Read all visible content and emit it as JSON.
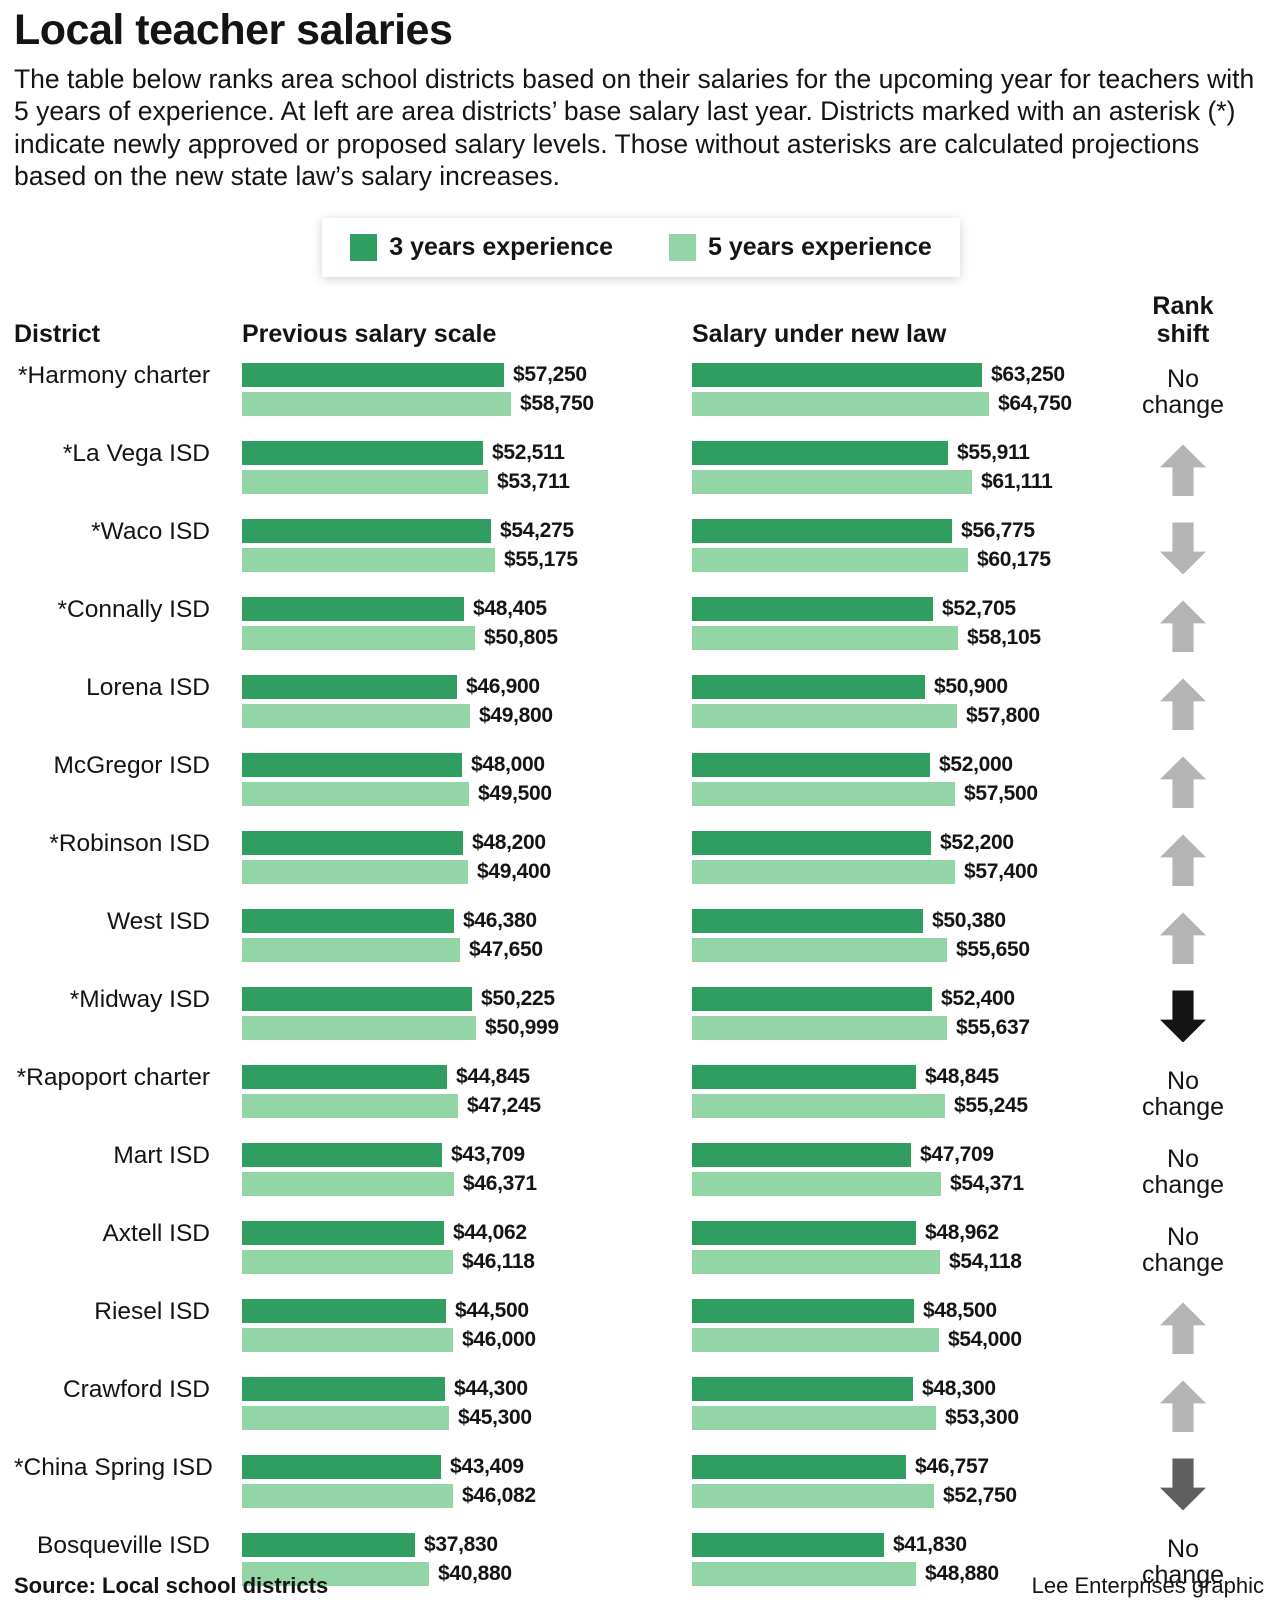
{
  "header": {
    "title": "Local teacher salaries",
    "description": "The table below ranks area school districts based on their salaries for the upcoming year for teachers with 5 years of experience. At left are area districts’ base salary last year. Districts marked with an asterisk (*) indicate newly approved or proposed salary levels. Those without asterisks are calculated projections based on the new state law’s salary increases."
  },
  "legend": [
    {
      "label": "3 years experience",
      "color": "#2f9e60"
    },
    {
      "label": "5 years experience",
      "color": "#94d5a7"
    }
  ],
  "columns": {
    "district": "District",
    "previous": "Previous salary scale",
    "new_law": "Salary under new law",
    "rank_shift": "Rank shift"
  },
  "chart_data": {
    "type": "bar",
    "title": "Local teacher salaries",
    "series_names": [
      "3 years experience",
      "5 years experience"
    ],
    "colors": {
      "three_year": "#2f9e60",
      "five_year": "#94d5a7"
    },
    "value_axis": {
      "min": 0,
      "max": 64750
    },
    "groups": [
      "Previous salary scale",
      "Salary under new law"
    ],
    "rows": [
      {
        "district": "*Harmony charter",
        "prev_3yr": 57250,
        "prev_3yr_label": "$57,250",
        "prev_5yr": 58750,
        "prev_5yr_label": "$58,750",
        "new_3yr": 63250,
        "new_3yr_label": "$63,250",
        "new_5yr": 64750,
        "new_5yr_label": "$64,750",
        "rank": {
          "type": "none",
          "label": "No change"
        }
      },
      {
        "district": "*La Vega ISD",
        "prev_3yr": 52511,
        "prev_3yr_label": "$52,511",
        "prev_5yr": 53711,
        "prev_5yr_label": "$53,711",
        "new_3yr": 55911,
        "new_3yr_label": "$55,911",
        "new_5yr": 61111,
        "new_5yr_label": "$61,111",
        "rank": {
          "type": "up",
          "color": "#b4b4b4"
        }
      },
      {
        "district": "*Waco ISD",
        "prev_3yr": 54275,
        "prev_3yr_label": "$54,275",
        "prev_5yr": 55175,
        "prev_5yr_label": "$55,175",
        "new_3yr": 56775,
        "new_3yr_label": "$56,775",
        "new_5yr": 60175,
        "new_5yr_label": "$60,175",
        "rank": {
          "type": "down",
          "color": "#b4b4b4"
        }
      },
      {
        "district": "*Connally ISD",
        "prev_3yr": 48405,
        "prev_3yr_label": "$48,405",
        "prev_5yr": 50805,
        "prev_5yr_label": "$50,805",
        "new_3yr": 52705,
        "new_3yr_label": "$52,705",
        "new_5yr": 58105,
        "new_5yr_label": "$58,105",
        "rank": {
          "type": "up",
          "color": "#b4b4b4"
        }
      },
      {
        "district": "Lorena ISD",
        "prev_3yr": 46900,
        "prev_3yr_label": "$46,900",
        "prev_5yr": 49800,
        "prev_5yr_label": "$49,800",
        "new_3yr": 50900,
        "new_3yr_label": "$50,900",
        "new_5yr": 57800,
        "new_5yr_label": "$57,800",
        "rank": {
          "type": "up",
          "color": "#b4b4b4"
        }
      },
      {
        "district": "McGregor ISD",
        "prev_3yr": 48000,
        "prev_3yr_label": "$48,000",
        "prev_5yr": 49500,
        "prev_5yr_label": "$49,500",
        "new_3yr": 52000,
        "new_3yr_label": "$52,000",
        "new_5yr": 57500,
        "new_5yr_label": "$57,500",
        "rank": {
          "type": "up",
          "color": "#b4b4b4"
        }
      },
      {
        "district": "*Robinson ISD",
        "prev_3yr": 48200,
        "prev_3yr_label": "$48,200",
        "prev_5yr": 49400,
        "prev_5yr_label": "$49,400",
        "new_3yr": 52200,
        "new_3yr_label": "$52,200",
        "new_5yr": 57400,
        "new_5yr_label": "$57,400",
        "rank": {
          "type": "up",
          "color": "#b4b4b4"
        }
      },
      {
        "district": "West ISD",
        "prev_3yr": 46380,
        "prev_3yr_label": "$46,380",
        "prev_5yr": 47650,
        "prev_5yr_label": "$47,650",
        "new_3yr": 50380,
        "new_3yr_label": "$50,380",
        "new_5yr": 55650,
        "new_5yr_label": "$55,650",
        "rank": {
          "type": "up",
          "color": "#b4b4b4"
        }
      },
      {
        "district": "*Midway ISD",
        "prev_3yr": 50225,
        "prev_3yr_label": "$50,225",
        "prev_5yr": 50999,
        "prev_5yr_label": "$50,999",
        "new_3yr": 52400,
        "new_3yr_label": "$52,400",
        "new_5yr": 55637,
        "new_5yr_label": "$55,637",
        "rank": {
          "type": "down",
          "color": "#141414"
        }
      },
      {
        "district": "*Rapoport charter",
        "prev_3yr": 44845,
        "prev_3yr_label": "$44,845",
        "prev_5yr": 47245,
        "prev_5yr_label": "$47,245",
        "new_3yr": 48845,
        "new_3yr_label": "$48,845",
        "new_5yr": 55245,
        "new_5yr_label": "$55,245",
        "rank": {
          "type": "none",
          "label": "No change"
        }
      },
      {
        "district": "Mart ISD",
        "prev_3yr": 43709,
        "prev_3yr_label": "$43,709",
        "prev_5yr": 46371,
        "prev_5yr_label": "$46,371",
        "new_3yr": 47709,
        "new_3yr_label": "$47,709",
        "new_5yr": 54371,
        "new_5yr_label": "$54,371",
        "rank": {
          "type": "none",
          "label": "No change"
        }
      },
      {
        "district": "Axtell ISD",
        "prev_3yr": 44062,
        "prev_3yr_label": "$44,062",
        "prev_5yr": 46118,
        "prev_5yr_label": "$46,118",
        "new_3yr": 48962,
        "new_3yr_label": "$48,962",
        "new_5yr": 54118,
        "new_5yr_label": "$54,118",
        "rank": {
          "type": "none",
          "label": "No change"
        }
      },
      {
        "district": "Riesel ISD",
        "prev_3yr": 44500,
        "prev_3yr_label": "$44,500",
        "prev_5yr": 46000,
        "prev_5yr_label": "$46,000",
        "new_3yr": 48500,
        "new_3yr_label": "$48,500",
        "new_5yr": 54000,
        "new_5yr_label": "$54,000",
        "rank": {
          "type": "up",
          "color": "#b4b4b4"
        }
      },
      {
        "district": "Crawford ISD",
        "prev_3yr": 44300,
        "prev_3yr_label": "$44,300",
        "prev_5yr": 45300,
        "prev_5yr_label": "$45,300",
        "new_3yr": 48300,
        "new_3yr_label": "$48,300",
        "new_5yr": 53300,
        "new_5yr_label": "$53,300",
        "rank": {
          "type": "up",
          "color": "#b4b4b4"
        }
      },
      {
        "district": "*China Spring ISD",
        "prev_3yr": 43409,
        "prev_3yr_label": "$43,409",
        "prev_5yr": 46082,
        "prev_5yr_label": "$46,082",
        "new_3yr": 46757,
        "new_3yr_label": "$46,757",
        "new_5yr": 52750,
        "new_5yr_label": "$52,750",
        "rank": {
          "type": "down",
          "color": "#5f5f5f"
        }
      },
      {
        "district": "Bosqueville ISD",
        "prev_3yr": 37830,
        "prev_3yr_label": "$37,830",
        "prev_5yr": 40880,
        "prev_5yr_label": "$40,880",
        "new_3yr": 41830,
        "new_3yr_label": "$41,830",
        "new_5yr": 48880,
        "new_5yr_label": "$48,880",
        "rank": {
          "type": "none",
          "label": "No change"
        }
      }
    ]
  },
  "footer": {
    "source": "Source: Local school districts",
    "credit": "Lee Enterprises graphic"
  }
}
